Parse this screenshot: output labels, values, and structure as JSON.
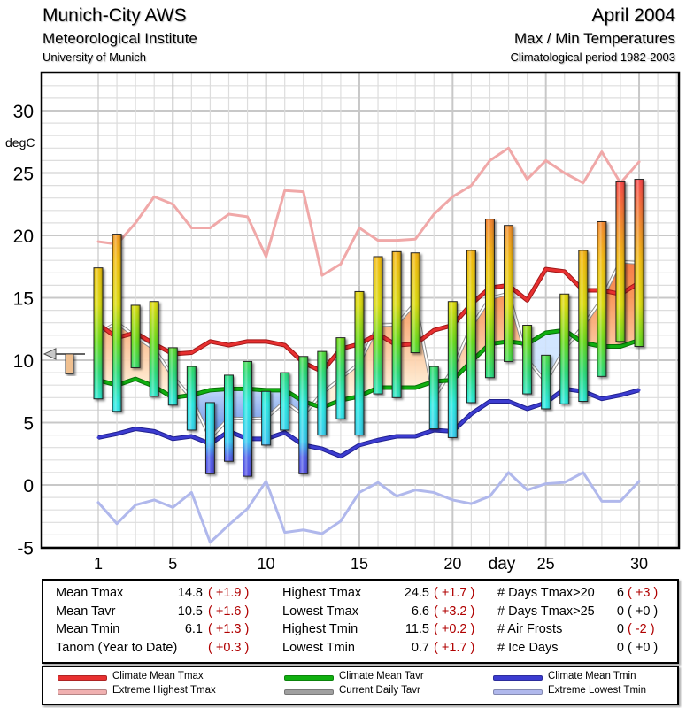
{
  "header": {
    "station": "Munich-City AWS",
    "institute": "Meteorological Institute",
    "university": "University of Munich",
    "month": "April 2004",
    "subtitle": "Max / Min Temperatures",
    "period": "Climatological period 1982-2003"
  },
  "chart_data": {
    "type": "bar",
    "title": "Max / Min Temperatures",
    "xlabel": "day",
    "ylabel": "degC",
    "xlim": [
      -2.2,
      32
    ],
    "ylim": [
      -5,
      33
    ],
    "x_ticks": [
      1,
      5,
      10,
      15,
      20,
      25,
      30
    ],
    "y_ticks": [
      -5,
      0,
      5,
      10,
      15,
      20,
      25,
      30
    ],
    "grid": true,
    "days": [
      1,
      2,
      3,
      4,
      5,
      6,
      7,
      8,
      9,
      10,
      11,
      12,
      13,
      14,
      15,
      16,
      17,
      18,
      19,
      20,
      21,
      22,
      23,
      24,
      25,
      26,
      27,
      28,
      29,
      30
    ],
    "daily_tmax": [
      17.4,
      20.1,
      14.4,
      14.7,
      11.0,
      9.5,
      6.6,
      8.8,
      9.9,
      7.5,
      9.0,
      10.3,
      10.7,
      11.8,
      15.5,
      18.3,
      18.7,
      18.6,
      9.5,
      14.7,
      18.8,
      21.3,
      20.8,
      12.8,
      10.4,
      15.3,
      18.8,
      21.1,
      24.3,
      24.5
    ],
    "daily_tmin": [
      6.9,
      5.9,
      9.4,
      7.1,
      6.4,
      4.4,
      0.9,
      1.9,
      0.7,
      3.2,
      4.4,
      0.9,
      4.0,
      5.3,
      4.0,
      7.3,
      7.0,
      10.6,
      4.5,
      3.8,
      6.6,
      8.6,
      9.9,
      7.3,
      6.1,
      6.5,
      6.7,
      8.7,
      11.5,
      11.1
    ],
    "series": [
      {
        "name": "Climate Mean Tmax",
        "color": "#e83030",
        "values": [
          12.9,
          11.8,
          12.2,
          11.3,
          10.5,
          10.6,
          11.5,
          11.2,
          11.5,
          11.5,
          11.2,
          9.8,
          9.1,
          10.9,
          11.3,
          12.1,
          11.2,
          11.3,
          12.4,
          12.8,
          14.5,
          15.8,
          16.0,
          14.8,
          17.3,
          17.1,
          15.6,
          15.6,
          15.3,
          16.2
        ]
      },
      {
        "name": "Extreme Highest Tmax",
        "color": "#f0a8a8",
        "values": [
          19.5,
          19.3,
          21.0,
          23.1,
          22.5,
          20.6,
          20.6,
          21.7,
          21.5,
          18.3,
          23.6,
          23.5,
          16.8,
          17.7,
          20.6,
          19.6,
          19.6,
          19.7,
          21.7,
          23.1,
          24.0,
          26.0,
          27.0,
          24.5,
          26.0,
          25.0,
          24.2,
          26.7,
          24.2,
          25.9
        ]
      },
      {
        "name": "Climate Mean Tavr",
        "color": "#10b010",
        "values": [
          8.4,
          8.0,
          8.5,
          7.9,
          7.0,
          7.2,
          7.6,
          7.7,
          7.7,
          7.6,
          7.6,
          6.7,
          6.2,
          6.8,
          7.1,
          7.8,
          7.8,
          7.8,
          8.3,
          8.4,
          9.9,
          11.3,
          11.5,
          11.3,
          12.2,
          12.4,
          11.4,
          11.1,
          11.1,
          11.6
        ]
      },
      {
        "name": "Current Daily Tavr",
        "color": "#909090",
        "derived": "mean of daily_tmax and daily_tmin"
      },
      {
        "name": "Climate Mean Tmin",
        "color": "#3c3cd0",
        "values": [
          3.8,
          4.1,
          4.5,
          4.3,
          3.7,
          3.9,
          3.3,
          4.3,
          3.7,
          3.7,
          4.2,
          3.2,
          2.9,
          2.3,
          3.2,
          3.6,
          3.9,
          3.9,
          4.4,
          4.3,
          5.7,
          6.7,
          6.7,
          6.1,
          6.6,
          7.7,
          7.5,
          6.9,
          7.2,
          7.6
        ]
      },
      {
        "name": "Extreme Lowest Tmin",
        "color": "#b0b8ec",
        "values": [
          -1.4,
          -3.1,
          -1.6,
          -1.2,
          -1.8,
          -0.6,
          -4.6,
          -3.2,
          -1.9,
          0.3,
          -3.8,
          -3.6,
          -3.9,
          -2.9,
          -0.6,
          0.2,
          -0.9,
          -0.4,
          -0.6,
          -1.2,
          -1.5,
          -0.9,
          1.0,
          -0.4,
          0.1,
          0.2,
          1.0,
          -1.3,
          -1.3,
          0.3
        ]
      }
    ],
    "monthly_marker": {
      "mean_tavr": 10.5,
      "climate_tavr": 8.9
    },
    "anomaly_colors": {
      "warm": "#f08040",
      "cold": "#6090e8"
    }
  },
  "stats": {
    "col1": [
      {
        "label": "Mean Tmax",
        "value": "14.8",
        "anom": "( +1.9 )"
      },
      {
        "label": "Mean Tavr",
        "value": "10.5",
        "anom": "( +1.6 )"
      },
      {
        "label": "Mean Tmin",
        "value": "6.1",
        "anom": "( +1.3 )"
      },
      {
        "label": "Tanom (Year to Date)",
        "value": "",
        "anom": "( +0.3 )"
      }
    ],
    "col2": [
      {
        "label": "Highest Tmax",
        "value": "24.5",
        "anom": "( +1.7 )"
      },
      {
        "label": "Lowest Tmax",
        "value": "6.6",
        "anom": "( +3.2 )"
      },
      {
        "label": "Highest Tmin",
        "value": "11.5",
        "anom": "( +0.2 )"
      },
      {
        "label": "Lowest Tmin",
        "value": "0.7",
        "anom": "( +1.7 )"
      }
    ],
    "col3": [
      {
        "label": "# Days Tmax>20",
        "value": "6",
        "anom": "( +3 )",
        "highlight": true
      },
      {
        "label": "# Days Tmax>25",
        "value": "0",
        "anom": "( +0 )",
        "highlight": false
      },
      {
        "label": "# Air Frosts",
        "value": "0",
        "anom": "( -2 )",
        "highlight": true
      },
      {
        "label": "# Ice Days",
        "value": "0",
        "anom": "( +0 )",
        "highlight": false
      }
    ]
  },
  "legend": [
    {
      "label": "Climate Mean Tmax",
      "color": "#e83030"
    },
    {
      "label": "Climate Mean Tavr",
      "color": "#10b010"
    },
    {
      "label": "Climate Mean Tmin",
      "color": "#3c3cd0"
    },
    {
      "label": "Extreme Highest Tmax",
      "color": "#f0b0b0"
    },
    {
      "label": "Current Daily Tavr",
      "color": "#a0a0a0"
    },
    {
      "label": "Extreme Lowest Tmin",
      "color": "#b0b8ec"
    }
  ]
}
